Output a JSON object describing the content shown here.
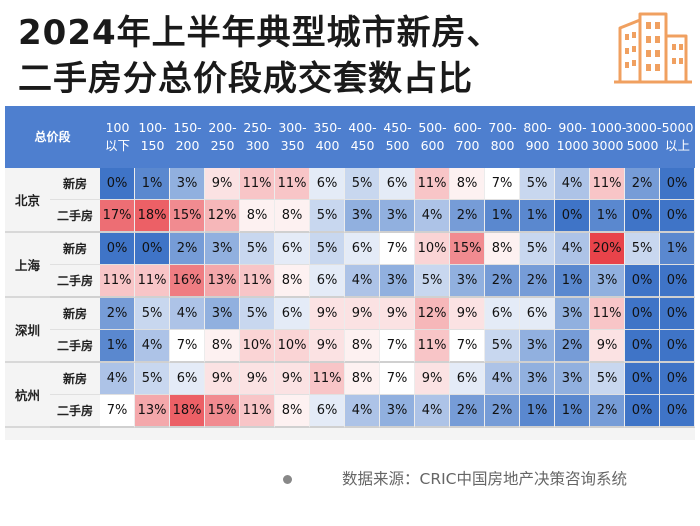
{
  "title": {
    "line1": "2024年上半年典型城市新房、",
    "line2": "二手房分总价段成交套数占比"
  },
  "source": "数据来源：CRIC中国房地产决策咨询系统",
  "colors": {
    "header_bg": "#4e7fcf",
    "high_red": "#e8434a",
    "low_blue": "#3f74c7",
    "mid_white": "#ffffff"
  },
  "table": {
    "corner": "总价段",
    "columns": [
      [
        "100",
        "以下"
      ],
      [
        "100-",
        "150"
      ],
      [
        "150-",
        "200"
      ],
      [
        "200-",
        "250"
      ],
      [
        "250-",
        "300"
      ],
      [
        "300-",
        "350"
      ],
      [
        "350-",
        "400"
      ],
      [
        "400-",
        "450"
      ],
      [
        "450-",
        "500"
      ],
      [
        "500-",
        "600"
      ],
      [
        "600-",
        "700"
      ],
      [
        "700-",
        "800"
      ],
      [
        "800-",
        "900"
      ],
      [
        "900-",
        "1000"
      ],
      [
        "1000-",
        "3000"
      ],
      [
        "3000-",
        "5000"
      ],
      [
        "5000",
        "以上"
      ]
    ]
  },
  "chart_data": {
    "type": "heatmap",
    "title": "2024年上半年典型城市新房、二手房分总价段成交套数占比",
    "x_categories": [
      "100以下",
      "100-150",
      "150-200",
      "200-250",
      "250-300",
      "300-350",
      "350-400",
      "400-450",
      "450-500",
      "500-600",
      "600-700",
      "700-800",
      "800-900",
      "900-1000",
      "1000-3000",
      "3000-5000",
      "5000以上"
    ],
    "value_unit": "%",
    "rows": [
      {
        "city": "北京",
        "type": "新房",
        "values": [
          0,
          1,
          3,
          9,
          11,
          11,
          6,
          5,
          6,
          11,
          8,
          7,
          5,
          4,
          11,
          2,
          0
        ]
      },
      {
        "city": "北京",
        "type": "二手房",
        "values": [
          17,
          18,
          15,
          12,
          8,
          8,
          5,
          3,
          3,
          4,
          2,
          1,
          1,
          0,
          1,
          0,
          0
        ]
      },
      {
        "city": "上海",
        "type": "新房",
        "values": [
          0,
          0,
          2,
          3,
          5,
          6,
          5,
          6,
          7,
          10,
          15,
          8,
          5,
          4,
          20,
          5,
          1
        ]
      },
      {
        "city": "上海",
        "type": "二手房",
        "values": [
          11,
          11,
          16,
          13,
          11,
          8,
          6,
          4,
          3,
          5,
          3,
          2,
          2,
          1,
          3,
          0,
          0
        ]
      },
      {
        "city": "深圳",
        "type": "新房",
        "values": [
          2,
          5,
          4,
          3,
          5,
          6,
          9,
          9,
          9,
          12,
          9,
          6,
          6,
          3,
          11,
          0,
          0
        ]
      },
      {
        "city": "深圳",
        "type": "二手房",
        "values": [
          1,
          4,
          7,
          8,
          10,
          10,
          9,
          8,
          7,
          11,
          7,
          5,
          3,
          2,
          9,
          0,
          0
        ]
      },
      {
        "city": "杭州",
        "type": "新房",
        "values": [
          4,
          5,
          6,
          9,
          9,
          9,
          11,
          8,
          7,
          9,
          6,
          4,
          3,
          3,
          5,
          0,
          0
        ]
      },
      {
        "city": "杭州",
        "type": "二手房",
        "values": [
          7,
          13,
          18,
          15,
          11,
          8,
          6,
          4,
          3,
          4,
          2,
          2,
          1,
          1,
          2,
          0,
          0
        ]
      }
    ]
  }
}
